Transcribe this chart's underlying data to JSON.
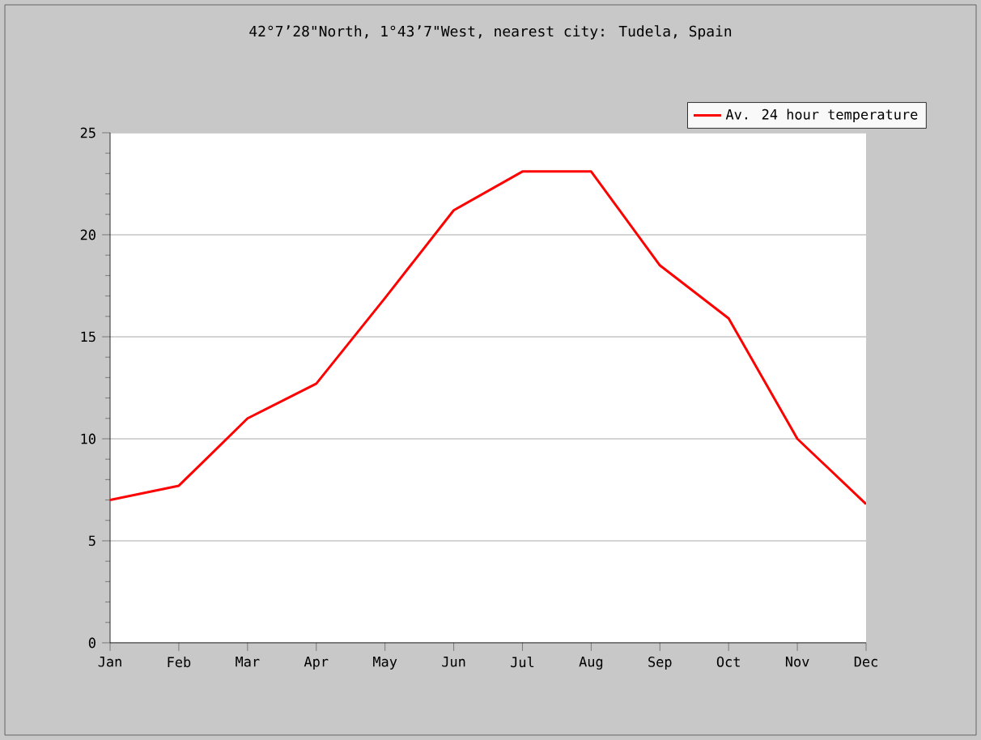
{
  "chart_data": {
    "type": "line",
    "title": "42°7’28\"North, 1°43’7\"West, nearest city: Tudela, Spain",
    "categories": [
      "Jan",
      "Feb",
      "Mar",
      "Apr",
      "May",
      "Jun",
      "Jul",
      "Aug",
      "Sep",
      "Oct",
      "Nov",
      "Dec"
    ],
    "series": [
      {
        "name": "Av. 24 hour temperature",
        "color": "#ff0000",
        "values": [
          7.0,
          7.7,
          11.0,
          12.7,
          16.9,
          21.2,
          23.1,
          23.1,
          18.5,
          15.9,
          10.0,
          6.8
        ]
      }
    ],
    "ylim": [
      0,
      25
    ],
    "yticks": [
      0,
      5,
      10,
      15,
      20,
      25
    ],
    "grid": "y",
    "legend": "top right",
    "marker": "none",
    "line_style": "solid"
  }
}
